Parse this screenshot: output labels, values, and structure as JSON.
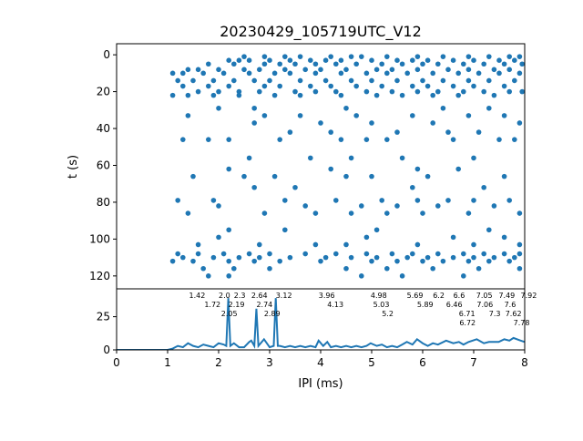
{
  "chart_data": [
    {
      "type": "scatter",
      "title": "20230429_105719UTC_V12",
      "xlabel": "",
      "ylabel": "t (s)",
      "xlim": [
        0,
        8
      ],
      "ylim": [
        127,
        -6
      ],
      "y_inverted": true,
      "yticks": [
        0,
        20,
        40,
        60,
        80,
        100,
        120
      ],
      "color": "#1f77b4",
      "rows": [
        {
          "t": 1,
          "ipi": [
            2.5,
            2.9,
            3.3,
            3.6,
            4.2,
            4.6,
            4.8,
            5.3,
            5.9,
            6.4,
            6.9,
            7.3,
            7.7,
            7.9
          ]
        },
        {
          "t": 3,
          "ipi": [
            2.2,
            2.4,
            2.6,
            3.0,
            3.4,
            3.8,
            4.1,
            4.4,
            5.0,
            5.5,
            5.8,
            6.1,
            6.6,
            7.0,
            7.5,
            7.8
          ]
        },
        {
          "t": 5,
          "ipi": [
            1.8,
            2.3,
            2.9,
            3.2,
            3.5,
            3.9,
            4.3,
            4.7,
            5.2,
            5.6,
            6.0,
            6.3,
            6.8,
            7.2,
            7.6,
            7.95
          ]
        },
        {
          "t": 8,
          "ipi": [
            1.4,
            1.6,
            2.0,
            2.5,
            2.8,
            3.3,
            3.7,
            4.0,
            4.5,
            5.1,
            5.4,
            5.9,
            6.5,
            6.9,
            7.4,
            7.7
          ]
        },
        {
          "t": 10,
          "ipi": [
            1.1,
            1.3,
            1.7,
            2.1,
            2.6,
            3.1,
            3.4,
            3.9,
            4.4,
            4.9,
            5.3,
            5.7,
            6.2,
            6.7,
            7.1,
            7.5,
            7.9
          ]
        },
        {
          "t": 14,
          "ipi": [
            1.2,
            1.5,
            1.9,
            2.3,
            2.7,
            3.0,
            3.6,
            4.1,
            4.6,
            5.0,
            5.5,
            6.0,
            6.4,
            6.9,
            7.3,
            7.8
          ]
        },
        {
          "t": 17,
          "ipi": [
            1.3,
            1.8,
            2.2,
            2.9,
            3.2,
            3.8,
            4.2,
            4.7,
            5.2,
            5.8,
            6.1,
            6.6,
            7.0,
            7.6
          ]
        },
        {
          "t": 20,
          "ipi": [
            1.6,
            2.0,
            2.4,
            2.8,
            3.5,
            3.9,
            4.3,
            4.9,
            5.4,
            5.9,
            6.3,
            6.8,
            7.2,
            7.7,
            7.95
          ]
        },
        {
          "t": 22,
          "ipi": [
            1.1,
            1.4,
            1.9,
            2.4,
            3.1,
            3.6,
            4.4,
            5.1,
            5.6,
            6.2,
            6.7,
            7.4
          ]
        },
        {
          "t": 29,
          "ipi": [
            2.0,
            2.7,
            4.5,
            6.4,
            7.3
          ]
        },
        {
          "t": 33,
          "ipi": [
            1.4,
            2.9,
            3.6,
            4.7,
            5.8,
            6.9,
            7.6
          ]
        },
        {
          "t": 37,
          "ipi": [
            2.7,
            4.0,
            5.0,
            6.2,
            7.9
          ]
        },
        {
          "t": 42,
          "ipi": [
            3.4,
            4.2,
            5.5,
            6.5,
            7.1
          ]
        },
        {
          "t": 46,
          "ipi": [
            1.3,
            1.8,
            2.2,
            3.2,
            4.4,
            4.9,
            5.3,
            6.6,
            7.5,
            7.8
          ]
        },
        {
          "t": 56,
          "ipi": [
            2.6,
            3.8,
            4.6,
            5.6,
            7.0
          ]
        },
        {
          "t": 62,
          "ipi": [
            2.2,
            4.2,
            5.9,
            6.7
          ]
        },
        {
          "t": 66,
          "ipi": [
            1.5,
            2.5,
            3.1,
            4.5,
            5.0,
            6.1,
            7.6
          ]
        },
        {
          "t": 72,
          "ipi": [
            2.7,
            3.5,
            5.8,
            7.2
          ]
        },
        {
          "t": 79,
          "ipi": [
            1.2,
            1.9,
            3.3,
            4.3,
            5.2,
            5.9,
            6.5,
            7.0,
            7.7
          ]
        },
        {
          "t": 82,
          "ipi": [
            2.0,
            3.7,
            4.8,
            5.5,
            6.3,
            7.4
          ]
        },
        {
          "t": 86,
          "ipi": [
            1.4,
            2.9,
            3.9,
            4.6,
            5.3,
            6.0,
            6.9,
            7.9
          ]
        },
        {
          "t": 95,
          "ipi": [
            2.2,
            3.3,
            5.1,
            7.3
          ]
        },
        {
          "t": 99,
          "ipi": [
            2.0,
            4.9,
            6.6,
            7.6
          ]
        },
        {
          "t": 103,
          "ipi": [
            1.6,
            2.8,
            3.9,
            4.5,
            5.9,
            7.0,
            7.9
          ]
        },
        {
          "t": 108,
          "ipi": [
            1.2,
            1.6,
            2.1,
            2.6,
            3.0,
            3.7,
            4.3,
            4.9,
            5.4,
            5.8,
            6.3,
            6.8,
            7.2,
            7.6,
            7.9
          ]
        },
        {
          "t": 110,
          "ipi": [
            1.3,
            1.9,
            2.4,
            2.8,
            3.4,
            4.1,
            4.6,
            5.1,
            5.7,
            6.1,
            6.6,
            7.0,
            7.4,
            7.8
          ]
        },
        {
          "t": 112,
          "ipi": [
            1.1,
            1.5,
            2.2,
            2.7,
            3.2,
            4.0,
            5.0,
            5.5,
            6.0,
            6.4,
            6.9,
            7.3,
            7.7
          ]
        },
        {
          "t": 116,
          "ipi": [
            1.7,
            2.3,
            3.0,
            4.5,
            5.3,
            6.2,
            7.1,
            7.9
          ]
        },
        {
          "t": 120,
          "ipi": [
            1.8,
            2.2,
            4.8,
            5.6,
            6.8
          ]
        }
      ]
    },
    {
      "type": "line",
      "xlabel": "IPI (ms)",
      "ylabel": "",
      "xlim": [
        0,
        8
      ],
      "ylim": [
        0,
        46
      ],
      "xticks": [
        0,
        1,
        2,
        3,
        4,
        5,
        6,
        7,
        8
      ],
      "yticks": [
        0,
        25
      ],
      "color": "#1f77b4",
      "x": [
        0,
        1.0,
        1.1,
        1.2,
        1.3,
        1.4,
        1.5,
        1.6,
        1.7,
        1.8,
        1.9,
        2.0,
        2.1,
        2.15,
        2.19,
        2.23,
        2.3,
        2.4,
        2.5,
        2.6,
        2.64,
        2.7,
        2.74,
        2.78,
        2.89,
        3.0,
        3.08,
        3.12,
        3.16,
        3.2,
        3.3,
        3.4,
        3.5,
        3.6,
        3.7,
        3.8,
        3.9,
        3.96,
        4.05,
        4.13,
        4.2,
        4.3,
        4.4,
        4.5,
        4.6,
        4.7,
        4.8,
        4.9,
        4.98,
        5.1,
        5.2,
        5.3,
        5.4,
        5.5,
        5.6,
        5.69,
        5.8,
        5.89,
        6.0,
        6.1,
        6.2,
        6.3,
        6.46,
        6.6,
        6.71,
        6.8,
        6.9,
        7.06,
        7.2,
        7.3,
        7.49,
        7.6,
        7.7,
        7.78,
        7.92,
        8.0
      ],
      "y": [
        0,
        0,
        1,
        3,
        2,
        5,
        3,
        2,
        4,
        3,
        2,
        5,
        4,
        3,
        39,
        3,
        5,
        2,
        2,
        6,
        7,
        3,
        31,
        3,
        8,
        2,
        3,
        39,
        3,
        3,
        2,
        3,
        2,
        3,
        2,
        3,
        2,
        7,
        3,
        6,
        2,
        3,
        2,
        3,
        2,
        3,
        2,
        3,
        5,
        3,
        4,
        2,
        3,
        2,
        4,
        6,
        4,
        8,
        5,
        3,
        5,
        4,
        7,
        5,
        6,
        4,
        6,
        8,
        5,
        6,
        6,
        8,
        7,
        9,
        7,
        6
      ],
      "annotations": [
        "1.42",
        "1.72",
        "2.0",
        "2.05",
        "2.19",
        "2.3",
        "2.64",
        "2.74",
        "2.89",
        "3.12",
        "3.96",
        "4.13",
        "4.98",
        "5.03",
        "5.2",
        "5.69",
        "5.89",
        "6.2",
        "6.46",
        "6.6",
        "6.71",
        "6.72",
        "7.06",
        "7.05",
        "7.3",
        "7.49",
        "7.6",
        "7.62",
        "7.78",
        "7.92"
      ],
      "annotation_x": [
        1.42,
        1.72,
        2.0,
        2.05,
        2.19,
        2.3,
        2.64,
        2.74,
        2.89,
        3.12,
        3.96,
        4.13,
        4.98,
        5.03,
        5.2,
        5.69,
        5.89,
        6.2,
        6.46,
        6.6,
        6.71,
        6.72,
        7.06,
        7.05,
        7.3,
        7.49,
        7.6,
        7.62,
        7.78,
        7.92
      ],
      "annotation_y": [
        5,
        5,
        5,
        5,
        39,
        5,
        7,
        31,
        8,
        39,
        7,
        6,
        5,
        5,
        4,
        6,
        8,
        5,
        7,
        5,
        6,
        6,
        8,
        8,
        6,
        6,
        8,
        8,
        9,
        7
      ]
    }
  ]
}
